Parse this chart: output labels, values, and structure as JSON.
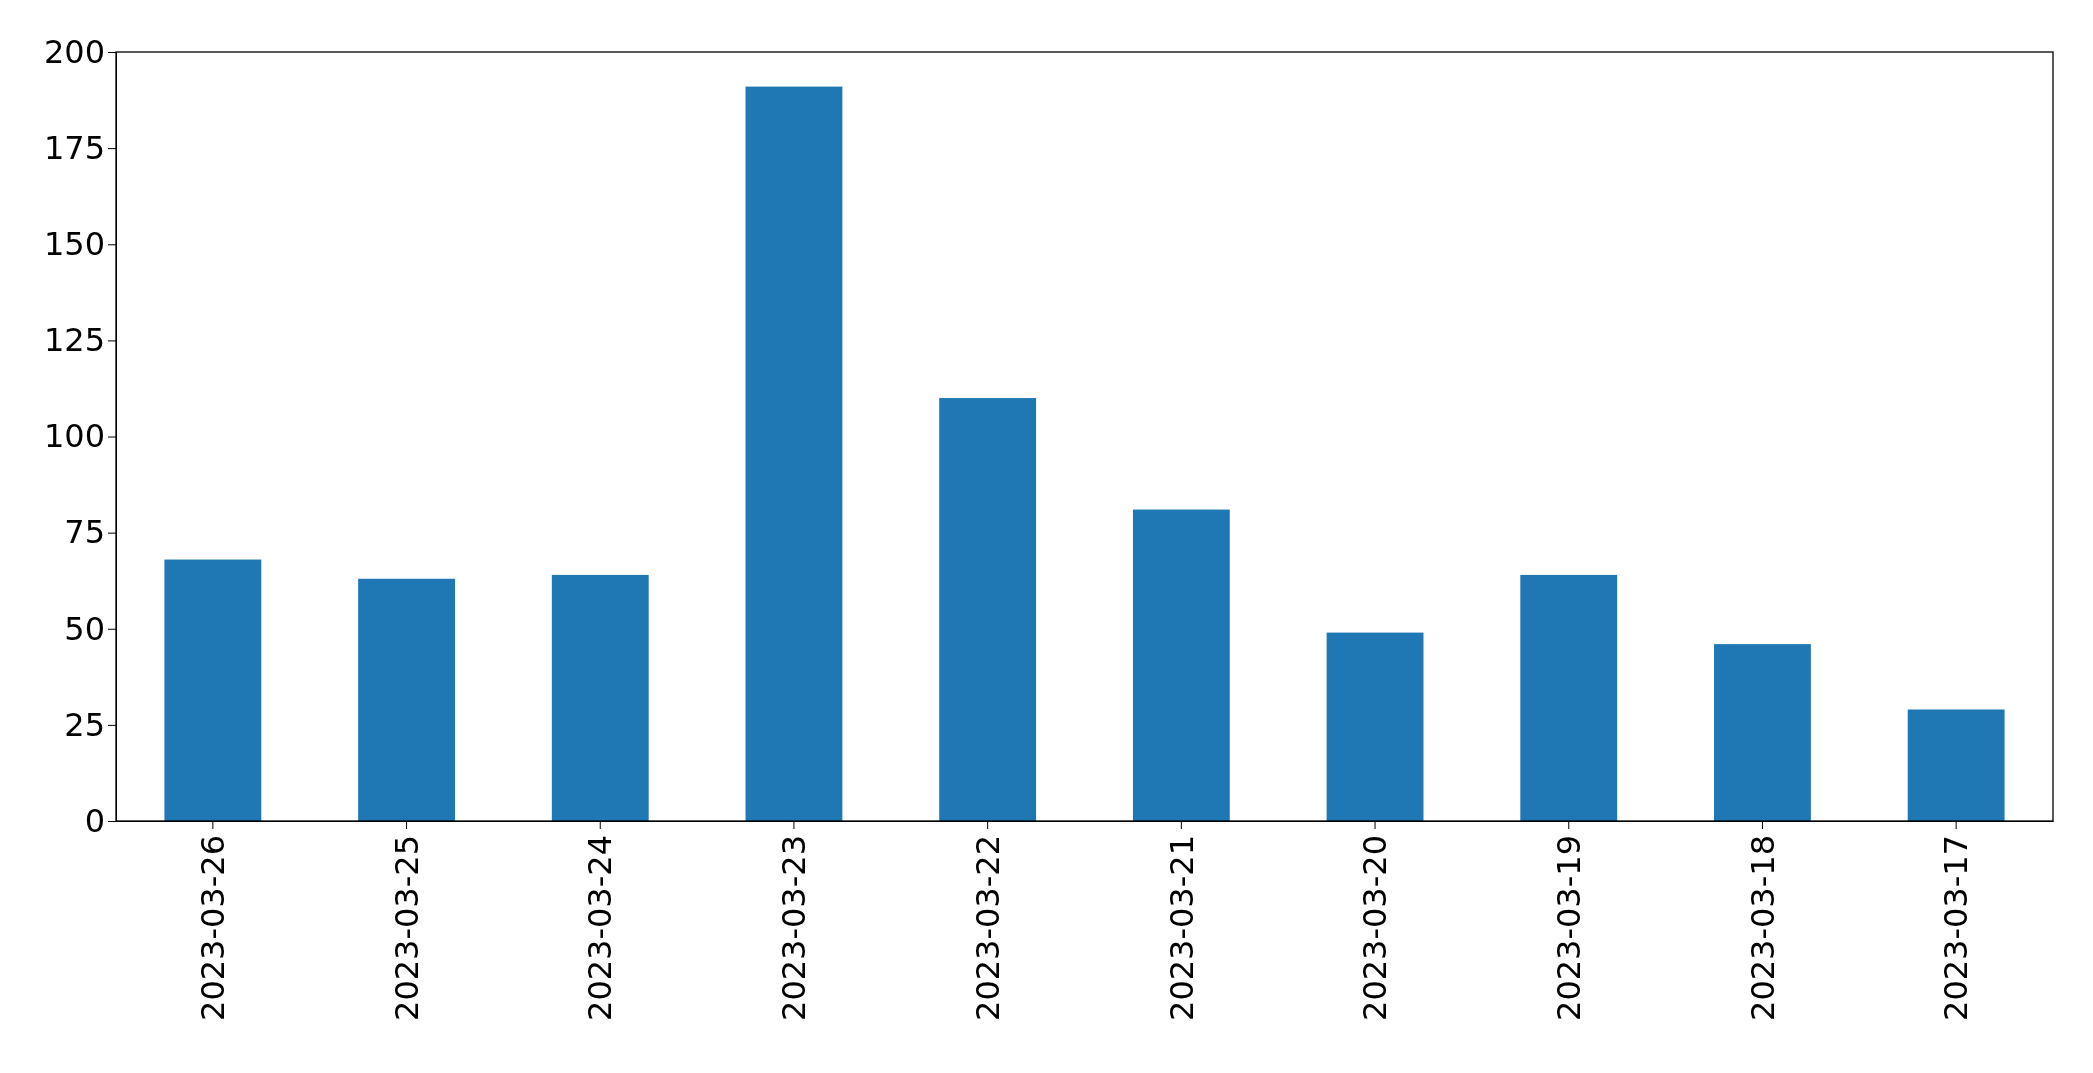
{
  "chart_data": {
    "type": "bar",
    "categories": [
      "2023-03-26",
      "2023-03-25",
      "2023-03-24",
      "2023-03-23",
      "2023-03-22",
      "2023-03-21",
      "2023-03-20",
      "2023-03-19",
      "2023-03-18",
      "2023-03-17"
    ],
    "values": [
      68,
      63,
      64,
      191,
      110,
      81,
      49,
      64,
      46,
      29
    ],
    "color": "#1f77b4",
    "ylim": [
      0,
      200
    ],
    "yticks": [
      0,
      25,
      50,
      75,
      100,
      125,
      150,
      175,
      200
    ],
    "grid": false,
    "legend": false
  }
}
